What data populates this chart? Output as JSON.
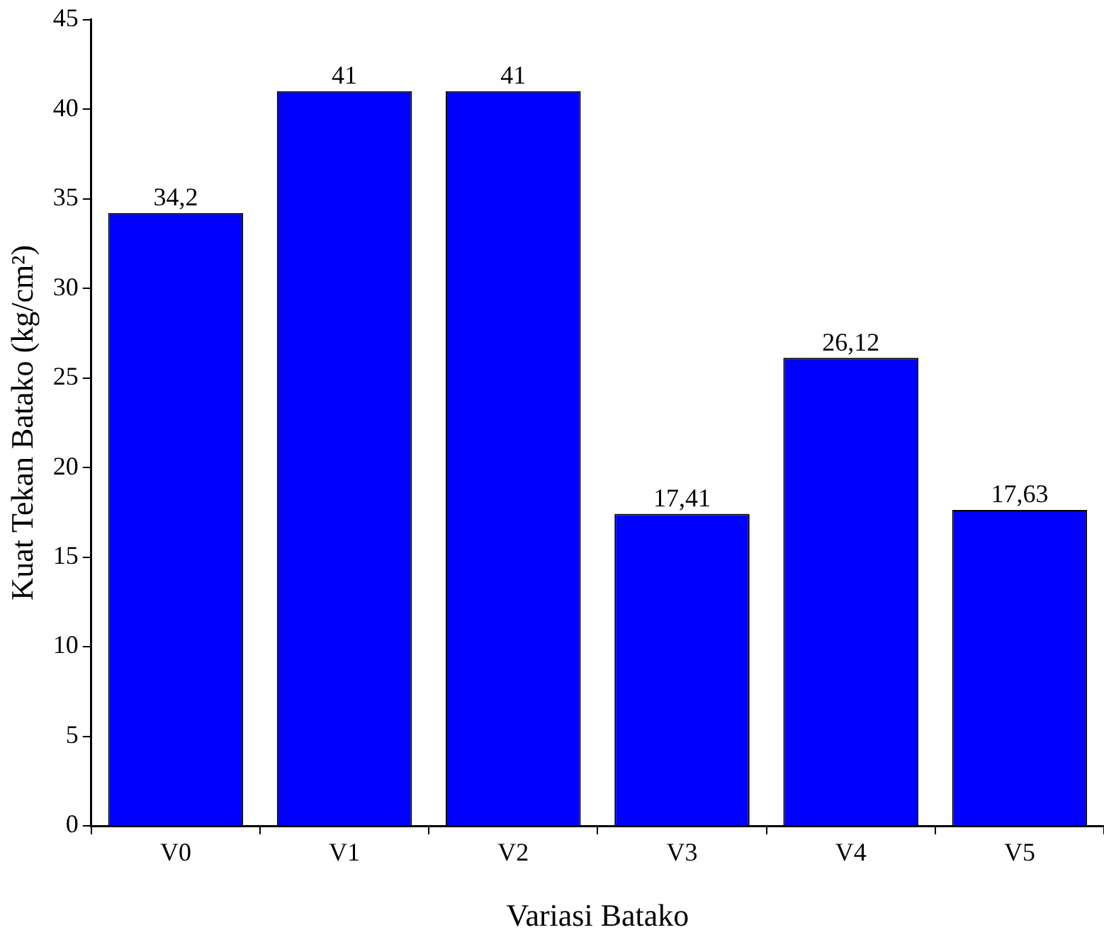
{
  "chart_data": {
    "type": "bar",
    "xlabel": "Variasi Batako",
    "ylabel": "Kuat Tekan Batako (kg/cm²)",
    "categories": [
      "V0",
      "V1",
      "V2",
      "V3",
      "V4",
      "V5"
    ],
    "values": [
      34.2,
      41,
      41,
      17.41,
      26.12,
      17.63
    ],
    "value_labels": [
      "34,2",
      "41",
      "41",
      "17,41",
      "26,12",
      "17,63"
    ],
    "color": "#0000ff",
    "ylim": [
      0,
      45
    ],
    "yticks": [
      0,
      5,
      10,
      15,
      20,
      25,
      30,
      35,
      40,
      45
    ],
    "grid": false,
    "legend": false
  }
}
